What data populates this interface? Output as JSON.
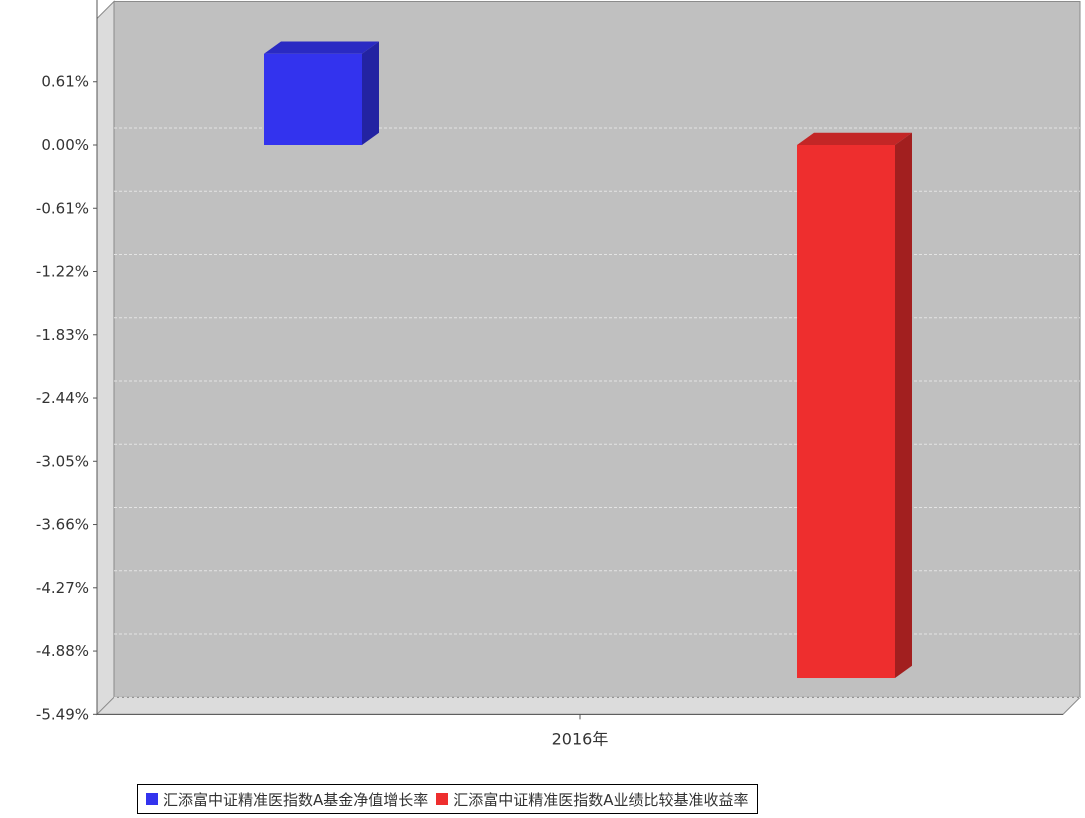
{
  "chart_data": {
    "type": "bar",
    "categories": [
      "2016年"
    ],
    "series": [
      {
        "name": "汇添富中证精准医指数A基金净值增长率",
        "values": [
          0.88
        ],
        "color": "#3333ee"
      },
      {
        "name": "汇添富中证精准医指数A业绩比较基准收益率",
        "values": [
          -5.14
        ],
        "color": "#ee2e2e"
      }
    ],
    "yticks": [
      "0.61%",
      "0.00%",
      "-0.61%",
      "-1.22%",
      "-1.83%",
      "-2.44%",
      "-3.05%",
      "-3.66%",
      "-4.27%",
      "-4.88%",
      "-5.49%"
    ],
    "ylim": [
      -5.49,
      1.22
    ],
    "grid": true,
    "legend_position": "bottom",
    "title": "",
    "xlabel": "",
    "ylabel": ""
  }
}
